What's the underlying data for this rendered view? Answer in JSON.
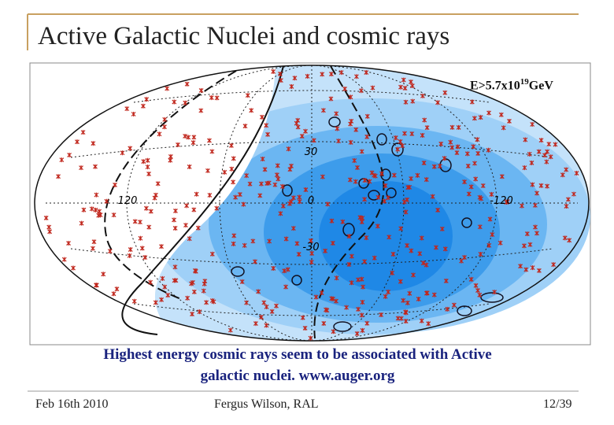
{
  "header": {
    "title": "Active Galactic Nuclei and cosmic rays"
  },
  "figure": {
    "energy_label": {
      "base": "E>5.7x10",
      "exponent": "19",
      "unit": "GeV"
    },
    "axis_labels": [
      "30",
      "120",
      "0",
      "-120",
      "-30"
    ]
  },
  "caption": {
    "lines": [
      "Highest energy cosmic rays seem to be associated with Active",
      "galactic nuclei. www.auger.org"
    ]
  },
  "footer": {
    "date": "Feb 16th 2010",
    "author": "Fergus Wilson, RAL",
    "page": "12/39"
  }
}
